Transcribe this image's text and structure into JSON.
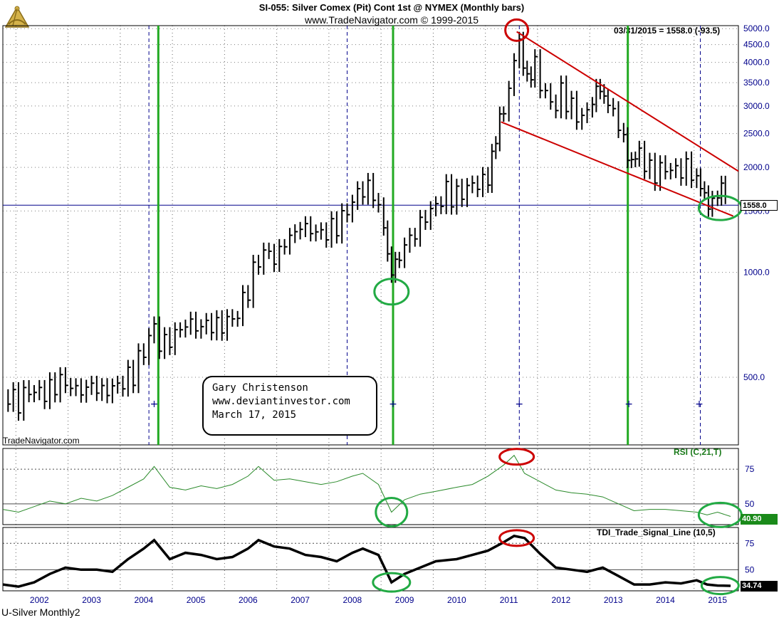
{
  "header": {
    "title": "SI-055:  Silver Comex (Pit) Cont 1st @ NYMEX  (Monthly bars)",
    "subtitle": "www.TradeNavigator.com © 1999-2015"
  },
  "watermark_label": "TradeNavigator.com",
  "chart_name": "U-Silver Monthly2",
  "readout": "03/31/2015 = 1558.0 (-93.5)",
  "annotation": {
    "line1": "Gary Christenson",
    "line2": "www.deviantinvestor.com",
    "line3": "March 17, 2015"
  },
  "colors": {
    "price_bars": "#000000",
    "trend_lines": "#cc0000",
    "cycle_lines": "#22aa22",
    "rsi_line": "#2a8a2a",
    "tdi_line": "#000000",
    "circle_green": "#22aa44",
    "circle_red": "#cc0000",
    "axis_text": "#00008b",
    "grid": "#000000"
  },
  "chart_data": [
    {
      "type": "ohlc",
      "title": "SI-055:  Silver Comex (Pit) Cont 1st @ NYMEX  (Monthly bars)",
      "y_scale": "log",
      "y_ticks": [
        500.0,
        1000.0,
        1500.0,
        2000.0,
        2500.0,
        3000.0,
        3500.0,
        4000.0,
        4500.0,
        5000.0
      ],
      "y_tick_labels": [
        "500.0",
        "1000.0",
        "1500.0",
        "2000.0",
        "2500.0",
        "3000.0",
        "3500.0",
        "4000.0",
        "4500.0",
        "5000.0"
      ],
      "x_ticks": [
        "2002",
        "2003",
        "2004",
        "2005",
        "2006",
        "2007",
        "2008",
        "2009",
        "2010",
        "2011",
        "2012",
        "2013",
        "2014",
        "2015"
      ],
      "x_range": [
        2001.3,
        2015.4
      ],
      "last_price": 1558.0,
      "last_price_label": "1558.0",
      "closes": [
        [
          2001.4,
          440
        ],
        [
          2001.6,
          425
        ],
        [
          2001.8,
          460
        ],
        [
          2002.0,
          450
        ],
        [
          2002.2,
          460
        ],
        [
          2002.4,
          490
        ],
        [
          2002.6,
          470
        ],
        [
          2002.8,
          455
        ],
        [
          2003.0,
          475
        ],
        [
          2003.2,
          455
        ],
        [
          2003.4,
          465
        ],
        [
          2003.6,
          485
        ],
        [
          2003.8,
          515
        ],
        [
          2004.0,
          600
        ],
        [
          2004.2,
          700
        ],
        [
          2004.3,
          620
        ],
        [
          2004.5,
          640
        ],
        [
          2004.7,
          690
        ],
        [
          2004.9,
          720
        ],
        [
          2005.0,
          690
        ],
        [
          2005.2,
          710
        ],
        [
          2005.4,
          700
        ],
        [
          2005.6,
          720
        ],
        [
          2005.8,
          760
        ],
        [
          2006.0,
          900
        ],
        [
          2006.2,
          1100
        ],
        [
          2006.4,
          1150
        ],
        [
          2006.5,
          1080
        ],
        [
          2006.7,
          1220
        ],
        [
          2006.9,
          1300
        ],
        [
          2007.0,
          1360
        ],
        [
          2007.2,
          1320
        ],
        [
          2007.4,
          1290
        ],
        [
          2007.6,
          1330
        ],
        [
          2007.8,
          1420
        ],
        [
          2008.0,
          1600
        ],
        [
          2008.2,
          1750
        ],
        [
          2008.4,
          1700
        ],
        [
          2008.6,
          1350
        ],
        [
          2008.75,
          1000
        ],
        [
          2008.9,
          1100
        ],
        [
          2009.0,
          1200
        ],
        [
          2009.2,
          1300
        ],
        [
          2009.4,
          1450
        ],
        [
          2009.6,
          1550
        ],
        [
          2009.8,
          1700
        ],
        [
          2010.0,
          1650
        ],
        [
          2010.2,
          1750
        ],
        [
          2010.4,
          1800
        ],
        [
          2010.6,
          1850
        ],
        [
          2010.75,
          2400
        ],
        [
          2010.9,
          2900
        ],
        [
          2011.0,
          3300
        ],
        [
          2011.1,
          4100
        ],
        [
          2011.2,
          4700
        ],
        [
          2011.35,
          3600
        ],
        [
          2011.5,
          3900
        ],
        [
          2011.7,
          3200
        ],
        [
          2011.9,
          3000
        ],
        [
          2012.0,
          3300
        ],
        [
          2012.2,
          2950
        ],
        [
          2012.4,
          2750
        ],
        [
          2012.6,
          3100
        ],
        [
          2012.75,
          3300
        ],
        [
          2012.9,
          3000
        ],
        [
          2013.0,
          2900
        ],
        [
          2013.2,
          2400
        ],
        [
          2013.35,
          2000
        ],
        [
          2013.5,
          2200
        ],
        [
          2013.7,
          1950
        ],
        [
          2013.9,
          1950
        ],
        [
          2014.0,
          2000
        ],
        [
          2014.2,
          1950
        ],
        [
          2014.4,
          2000
        ],
        [
          2014.6,
          1850
        ],
        [
          2014.75,
          1650
        ],
        [
          2014.9,
          1600
        ],
        [
          2015.0,
          1650
        ],
        [
          2015.15,
          1700
        ],
        [
          2015.25,
          1558
        ]
      ]
    },
    {
      "type": "line",
      "title": "RSI (C,21,T)",
      "y_ticks": [
        50,
        75
      ],
      "y_tick_labels": [
        "50",
        "75"
      ],
      "ylim": [
        35,
        90
      ],
      "last_value": 40.9,
      "last_value_label": "40.90",
      "points": [
        [
          2001.3,
          46
        ],
        [
          2001.6,
          44
        ],
        [
          2001.9,
          48
        ],
        [
          2002.2,
          52
        ],
        [
          2002.5,
          50
        ],
        [
          2002.8,
          54
        ],
        [
          2003.1,
          52
        ],
        [
          2003.4,
          56
        ],
        [
          2003.7,
          62
        ],
        [
          2004.0,
          68
        ],
        [
          2004.2,
          77
        ],
        [
          2004.5,
          62
        ],
        [
          2004.8,
          60
        ],
        [
          2005.1,
          63
        ],
        [
          2005.4,
          61
        ],
        [
          2005.7,
          64
        ],
        [
          2006.0,
          70
        ],
        [
          2006.2,
          77
        ],
        [
          2006.5,
          67
        ],
        [
          2006.8,
          68
        ],
        [
          2007.1,
          66
        ],
        [
          2007.4,
          64
        ],
        [
          2007.7,
          66
        ],
        [
          2008.0,
          70
        ],
        [
          2008.2,
          72
        ],
        [
          2008.5,
          64
        ],
        [
          2008.75,
          44
        ],
        [
          2009.0,
          53
        ],
        [
          2009.3,
          57
        ],
        [
          2009.6,
          59
        ],
        [
          2010.0,
          62
        ],
        [
          2010.3,
          64
        ],
        [
          2010.6,
          70
        ],
        [
          2010.9,
          78
        ],
        [
          2011.1,
          85
        ],
        [
          2011.3,
          72
        ],
        [
          2011.6,
          66
        ],
        [
          2011.9,
          60
        ],
        [
          2012.2,
          58
        ],
        [
          2012.5,
          57
        ],
        [
          2012.8,
          55
        ],
        [
          2013.1,
          50
        ],
        [
          2013.4,
          45
        ],
        [
          2013.7,
          46
        ],
        [
          2014.0,
          46
        ],
        [
          2014.3,
          45
        ],
        [
          2014.6,
          44
        ],
        [
          2014.8,
          42
        ],
        [
          2015.0,
          44
        ],
        [
          2015.25,
          40.9
        ]
      ]
    },
    {
      "type": "line",
      "title": "TDI_Trade_Signal_Line (10,5)",
      "y_ticks": [
        50,
        75
      ],
      "y_tick_labels": [
        "50",
        "75"
      ],
      "ylim": [
        30,
        90
      ],
      "last_value": 34.74,
      "last_value_label": "34.74",
      "points": [
        [
          2001.3,
          36
        ],
        [
          2001.6,
          34
        ],
        [
          2001.9,
          38
        ],
        [
          2002.2,
          46
        ],
        [
          2002.5,
          52
        ],
        [
          2002.8,
          50
        ],
        [
          2003.1,
          50
        ],
        [
          2003.4,
          48
        ],
        [
          2003.7,
          60
        ],
        [
          2004.0,
          70
        ],
        [
          2004.2,
          78
        ],
        [
          2004.5,
          60
        ],
        [
          2004.8,
          66
        ],
        [
          2005.1,
          64
        ],
        [
          2005.4,
          60
        ],
        [
          2005.7,
          62
        ],
        [
          2006.0,
          70
        ],
        [
          2006.2,
          78
        ],
        [
          2006.5,
          72
        ],
        [
          2006.8,
          70
        ],
        [
          2007.1,
          64
        ],
        [
          2007.4,
          62
        ],
        [
          2007.7,
          58
        ],
        [
          2008.0,
          66
        ],
        [
          2008.2,
          70
        ],
        [
          2008.5,
          64
        ],
        [
          2008.75,
          38
        ],
        [
          2009.0,
          46
        ],
        [
          2009.3,
          52
        ],
        [
          2009.6,
          58
        ],
        [
          2010.0,
          60
        ],
        [
          2010.3,
          64
        ],
        [
          2010.6,
          68
        ],
        [
          2010.9,
          76
        ],
        [
          2011.1,
          82
        ],
        [
          2011.3,
          80
        ],
        [
          2011.6,
          65
        ],
        [
          2011.9,
          52
        ],
        [
          2012.2,
          50
        ],
        [
          2012.5,
          48
        ],
        [
          2012.8,
          52
        ],
        [
          2013.1,
          44
        ],
        [
          2013.4,
          36
        ],
        [
          2013.7,
          36
        ],
        [
          2014.0,
          38
        ],
        [
          2014.3,
          37
        ],
        [
          2014.6,
          40
        ],
        [
          2014.8,
          36
        ],
        [
          2015.0,
          35
        ],
        [
          2015.25,
          34.74
        ]
      ]
    }
  ]
}
